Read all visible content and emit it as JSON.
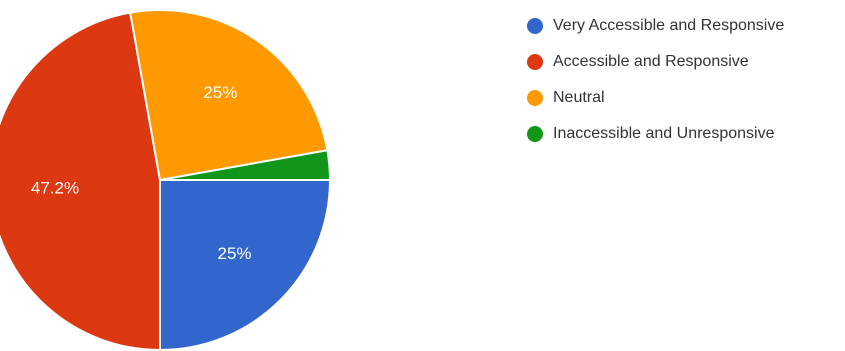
{
  "chart_data": {
    "type": "pie",
    "slices": [
      {
        "label": "Very Accessible and Responsive",
        "value": 25,
        "display": "25%",
        "color": "#3366cc"
      },
      {
        "label": "Accessible and Responsive",
        "value": 47.2,
        "display": "47.2%",
        "color": "#dc3912"
      },
      {
        "label": "Neutral",
        "value": 25,
        "display": "25%",
        "color": "#ff9900"
      },
      {
        "label": "Inaccessible and Unresponsive",
        "value": 2.8,
        "display": "",
        "color": "#109618"
      }
    ],
    "legend_position": "right",
    "start_angle": "3 o'clock",
    "direction": "clockwise"
  }
}
